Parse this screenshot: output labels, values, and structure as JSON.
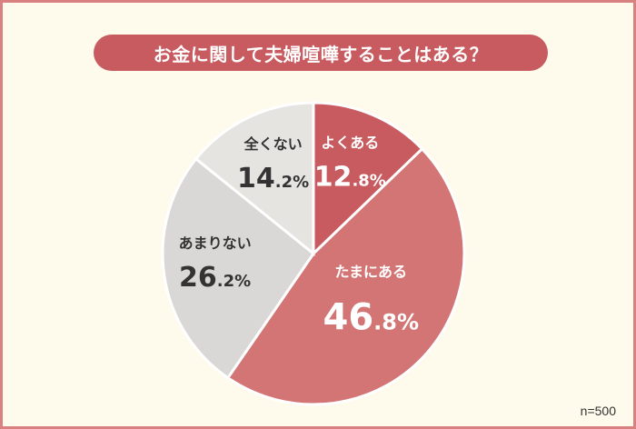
{
  "title": "お金に関して夫婦喧嘩することはある？",
  "sample_size": "n=500",
  "colors": {
    "accent": "#c85b5f",
    "frame": "#d98080",
    "background": "#fefbec"
  },
  "chart_data": {
    "type": "pie",
    "title": "お金に関して夫婦喧嘩することはある？",
    "unit": "%",
    "slices": [
      {
        "label": "よくある",
        "value": 12.8,
        "int": "12",
        "dec": ".8%",
        "color": "#c85b5f"
      },
      {
        "label": "たまにある",
        "value": 46.8,
        "int": "46",
        "dec": ".8%",
        "color": "#d47575"
      },
      {
        "label": "あまりない",
        "value": 26.2,
        "int": "26",
        "dec": ".2%",
        "color": "#dad8d6"
      },
      {
        "label": "全くない",
        "value": 14.2,
        "int": "14",
        "dec": ".2%",
        "color": "#e6e4e1"
      }
    ]
  }
}
